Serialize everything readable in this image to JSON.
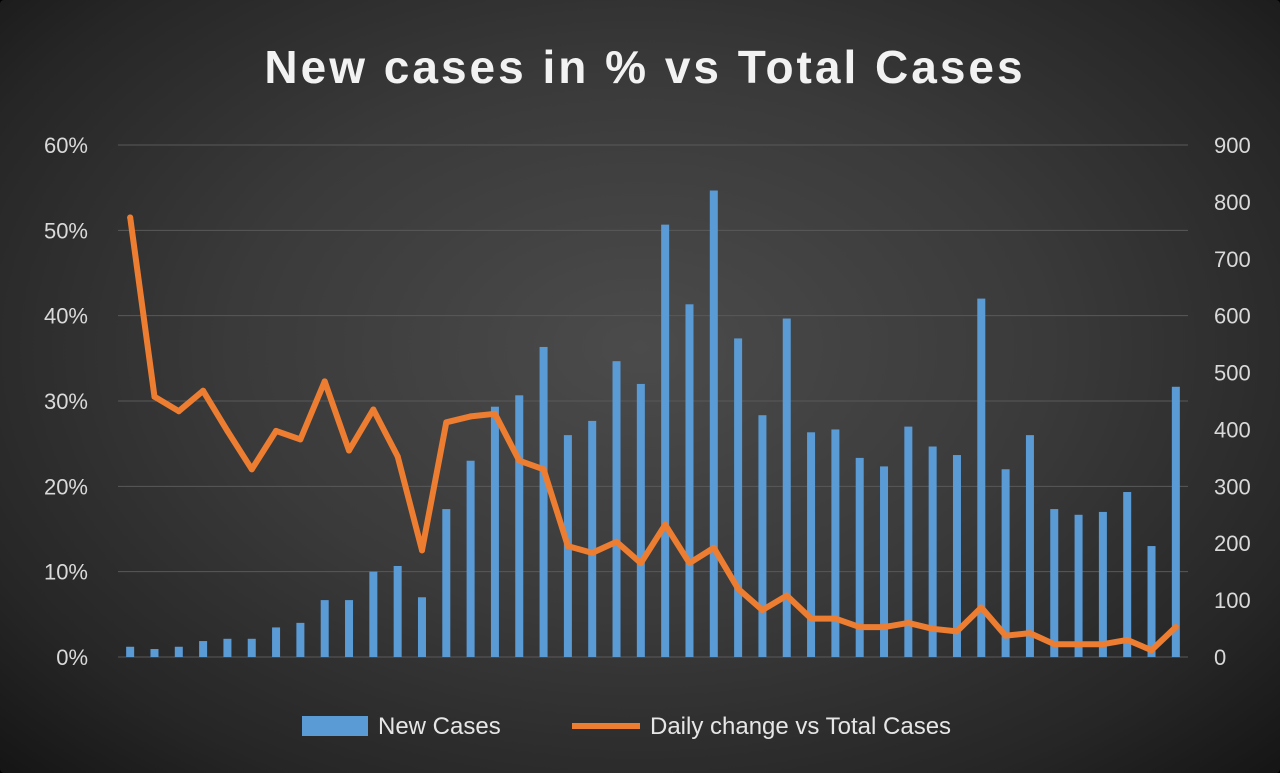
{
  "chart_data": {
    "type": "bar",
    "title": "New cases in % vs Total Cases",
    "y_left": {
      "ticks": [
        "0%",
        "10%",
        "20%",
        "30%",
        "40%",
        "50%",
        "60%"
      ],
      "range": [
        0,
        60
      ]
    },
    "y_right": {
      "ticks": [
        "0",
        "100",
        "200",
        "300",
        "400",
        "500",
        "600",
        "700",
        "800",
        "900"
      ],
      "range": [
        0,
        900
      ]
    },
    "grid": true,
    "legend_position": "bottom",
    "series": [
      {
        "name": "New Cases",
        "type": "bar",
        "axis": "right",
        "color": "#5b9bd5",
        "values": [
          18,
          14,
          18,
          28,
          32,
          32,
          52,
          60,
          100,
          100,
          150,
          160,
          105,
          260,
          345,
          440,
          460,
          545,
          390,
          415,
          520,
          480,
          760,
          620,
          820,
          560,
          425,
          595,
          395,
          400,
          350,
          335,
          405,
          370,
          355,
          630,
          330,
          390,
          260,
          250,
          255,
          290,
          195,
          475
        ]
      },
      {
        "name": "Daily change vs Total Cases",
        "type": "line",
        "axis": "left",
        "color": "#ed7d31",
        "values": [
          51.5,
          30.5,
          28.8,
          31.2,
          26.5,
          22.0,
          26.5,
          25.5,
          32.3,
          24.2,
          29.0,
          23.5,
          12.5,
          27.5,
          28.2,
          28.5,
          23.0,
          22.0,
          13.0,
          12.2,
          13.5,
          11.0,
          15.5,
          11.0,
          12.8,
          8.0,
          5.5,
          7.2,
          4.5,
          4.5,
          3.5,
          3.5,
          4.0,
          3.3,
          3.0,
          5.8,
          2.5,
          2.8,
          1.5,
          1.5,
          1.5,
          2.0,
          0.8,
          3.5
        ]
      }
    ]
  }
}
